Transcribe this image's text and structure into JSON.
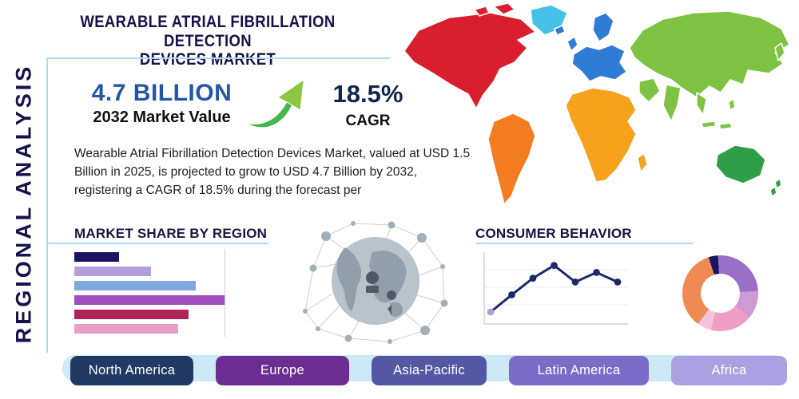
{
  "header": {
    "title_line1": "WEARABLE ATRIAL FIBRILLATION DETECTION",
    "title_line2": "DEVICES MARKET"
  },
  "sidebar": {
    "label": "REGIONAL ANALYSIS"
  },
  "stats": {
    "market_value": "4.7 BILLION",
    "market_value_label": "2032 Market Value",
    "cagr_value": "18.5%",
    "cagr_label": "CAGR",
    "arrow_color": "#45b649",
    "value_color": "#2356a7",
    "cagr_color": "#0f264d"
  },
  "description": {
    "text": "Wearable Atrial Fibrillation Detection Devices Market, valued at USD 1.5 Billion in 2025, is projected to grow to USD 4.7 Billion by 2032, registering a CAGR of 18.5% during the forecast per"
  },
  "sections": {
    "market_share_title": "MARKET SHARE BY REGION",
    "consumer_behavior_title": "CONSUMER BEHAVIOR"
  },
  "chart_data": [
    {
      "type": "bar",
      "orientation": "horizontal",
      "title": "Market Share by Region",
      "values": [
        30,
        51,
        81,
        100,
        76,
        69
      ],
      "colors": [
        "#1b1464",
        "#b49ddb",
        "#7fa8dc",
        "#a14ebe",
        "#b02359",
        "#e59fc9"
      ],
      "xlim": [
        0,
        100
      ],
      "gridline_at": 100,
      "grid": true,
      "legend": "none"
    },
    {
      "type": "line",
      "title": "Consumer Behavior",
      "x": [
        1,
        2,
        3,
        4,
        5,
        6,
        7
      ],
      "values": [
        15,
        42,
        68,
        88,
        62,
        77,
        62
      ],
      "ylim": [
        0,
        100
      ],
      "color": "#1b2a6b",
      "first_point_color": "#b39ddb",
      "grid": true,
      "legend": "none"
    },
    {
      "type": "pie",
      "donut": true,
      "title": "Regional Share Donut",
      "values": [
        4,
        25,
        12,
        18,
        6,
        35
      ],
      "colors": [
        "#1b1464",
        "#9a6fc7",
        "#cf9ad3",
        "#f09ec6",
        "#f5c3da",
        "#ee8a52"
      ],
      "legend": "none"
    }
  ],
  "map": {
    "colors": {
      "north_america": "#d91f2d",
      "greenland": "#45c1e8",
      "south_america": "#f47c20",
      "europe": "#2f7cd6",
      "africa": "#f6a21d",
      "asia": "#7dc242",
      "australia": "#2f9e49"
    }
  },
  "footer": {
    "bar_color": "#cde9f6",
    "regions": [
      {
        "label": "North America",
        "color": "#223a63"
      },
      {
        "label": "Europe",
        "color": "#6c2d92"
      },
      {
        "label": "Asia-Pacific",
        "color": "#5458a4"
      },
      {
        "label": "Latin America",
        "color": "#7b6cc7"
      },
      {
        "label": "Africa",
        "color": "#aba0e2"
      }
    ]
  },
  "theme": {
    "divider_color": "#a9dcee",
    "title_color": "#161348"
  }
}
